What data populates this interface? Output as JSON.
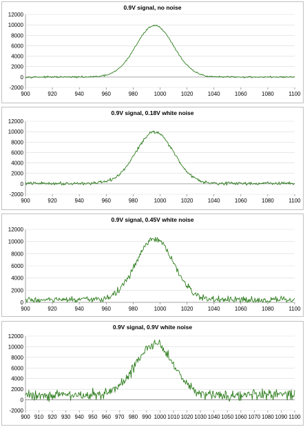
{
  "chart_data": [
    {
      "type": "line",
      "title": "0.9V signal, no noise",
      "xlim": [
        900,
        1100
      ],
      "ylim": [
        -2000,
        12000
      ],
      "xticks": [
        900,
        920,
        940,
        960,
        980,
        1000,
        1020,
        1040,
        1060,
        1080,
        1100
      ],
      "yticks": [
        -2000,
        0,
        2000,
        4000,
        6000,
        8000,
        10000,
        12000
      ],
      "grid": "horizontal",
      "legend": "none",
      "series": [
        {
          "color": "#2e7d1e",
          "noise_level": 150,
          "shape": {
            "type": "gaussian",
            "peak": 9900,
            "center": 996,
            "sigma": 14,
            "baseline": 0
          },
          "x_range": [
            900,
            1100,
            0.5
          ]
        }
      ]
    },
    {
      "type": "line",
      "title": "0.9V signal, 0.18V white noise",
      "xlim": [
        900,
        1100
      ],
      "ylim": [
        -2000,
        12000
      ],
      "xticks": [
        900,
        920,
        940,
        960,
        980,
        1000,
        1020,
        1040,
        1060,
        1080,
        1100
      ],
      "yticks": [
        -2000,
        0,
        2000,
        4000,
        6000,
        8000,
        10000,
        12000
      ],
      "grid": "horizontal",
      "legend": "none",
      "series": [
        {
          "color": "#2e7d1e",
          "noise_level": 300,
          "shape": {
            "type": "gaussian",
            "peak": 9900,
            "center": 996,
            "sigma": 14,
            "baseline": 80
          },
          "x_range": [
            900,
            1100,
            0.5
          ]
        }
      ]
    },
    {
      "type": "line",
      "title": "0.9V signal, 0.45V white noise",
      "xlim": [
        900,
        1100
      ],
      "ylim": [
        0,
        12000
      ],
      "xticks": [
        900,
        920,
        940,
        960,
        980,
        1000,
        1020,
        1040,
        1060,
        1080,
        1100
      ],
      "yticks": [
        0,
        2000,
        4000,
        6000,
        8000,
        10000,
        12000
      ],
      "grid": "horizontal",
      "legend": "none",
      "series": [
        {
          "color": "#2e7d1e",
          "noise_level": 550,
          "shape": {
            "type": "gaussian",
            "peak": 10000,
            "center": 996,
            "sigma": 14,
            "baseline": 380
          },
          "x_range": [
            900,
            1100,
            0.5
          ]
        }
      ]
    },
    {
      "type": "line",
      "title": "0.9V signal, 0.9V white noise",
      "xlim": [
        900,
        1100
      ],
      "ylim": [
        -2000,
        12000
      ],
      "xticks": [
        900,
        910,
        920,
        930,
        940,
        950,
        960,
        970,
        980,
        990,
        1000,
        1010,
        1020,
        1030,
        1040,
        1050,
        1060,
        1070,
        1080,
        1090,
        1100
      ],
      "yticks": [
        -2000,
        0,
        2000,
        4000,
        6000,
        8000,
        10000,
        12000
      ],
      "grid": "horizontal",
      "legend": "none",
      "series": [
        {
          "color": "#2e7d1e",
          "noise_level": 1000,
          "shape": {
            "type": "gaussian",
            "peak": 9600,
            "center": 996,
            "sigma": 14,
            "baseline": 900
          },
          "x_range": [
            900,
            1100,
            0.5
          ]
        }
      ]
    }
  ]
}
